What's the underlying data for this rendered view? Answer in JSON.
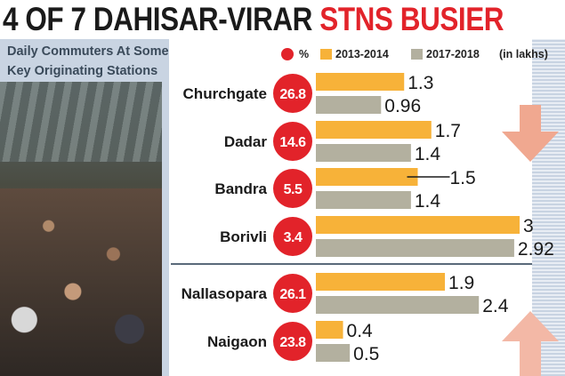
{
  "headline": {
    "part1": "4 OF 7 DAHISAR-VIRAR",
    "part2": "STNS BUSIER"
  },
  "subtitle": [
    "Daily Commuters At Some",
    "Key Originating Stations"
  ],
  "colors": {
    "accent_red": "#e2232a",
    "bar_2013": "#f7b239",
    "bar_2017": "#b3b09f",
    "bg_blue": "#c9d4e2",
    "arrow_down": "#f0a890",
    "arrow_up": "#f3b8a6"
  },
  "legend": {
    "pct_label": "%",
    "series_2013": "2013-2014",
    "series_2017": "2017-2018",
    "unit": "(in lakhs)"
  },
  "icons": {
    "down": "down-arrow-icon",
    "up": "up-arrow-icon"
  },
  "chart_data": {
    "type": "bar",
    "orientation": "horizontal",
    "title": "4 OF 7 DAHISAR-VIRAR STNS BUSIER",
    "subtitle": "Daily Commuters At Some Key Originating Stations",
    "unit": "(in lakhs)",
    "xlim": [
      0,
      3.2
    ],
    "categories": [
      "Churchgate",
      "Dadar",
      "Bandra",
      "Borivli",
      "Nallasopara",
      "Naigaon"
    ],
    "percent_change": [
      "26.8",
      "14.6",
      "5.5",
      "3.4",
      "26.1",
      "23.8"
    ],
    "series": [
      {
        "name": "2013-2014",
        "values": [
          1.3,
          1.7,
          1.5,
          3,
          1.9,
          0.4
        ],
        "labels": [
          "1.3",
          "1.7",
          "1.5",
          "3",
          "1.9",
          "0.4"
        ]
      },
      {
        "name": "2017-2018",
        "values": [
          0.96,
          1.4,
          1.4,
          2.92,
          2.4,
          0.5
        ],
        "labels": [
          "0.96",
          "1.4",
          "1.4",
          "2.92",
          "2.4",
          "0.5"
        ]
      }
    ]
  }
}
